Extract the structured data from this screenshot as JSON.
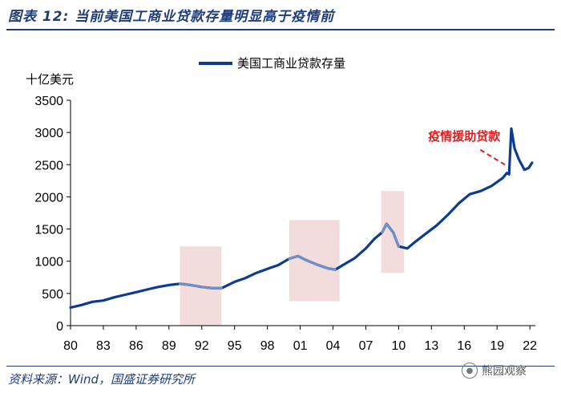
{
  "header": {
    "title": "图表 12:  当前美国工商业贷款存量明显高于疫情前"
  },
  "footer": {
    "source": "资料来源：Wind，国盛证券研究所",
    "watermark": "熊园观察"
  },
  "chart_data": {
    "type": "line",
    "title": "",
    "ylabel": "十亿美元",
    "xlabel": "",
    "ylim": [
      0,
      3500
    ],
    "xlim": [
      1980,
      2022.5
    ],
    "yticks": [
      0,
      500,
      1000,
      1500,
      2000,
      2500,
      3000,
      3500
    ],
    "xticks": [
      1980,
      1983,
      1986,
      1989,
      1992,
      1995,
      1998,
      2001,
      2004,
      2007,
      2010,
      2013,
      2016,
      2019,
      2022
    ],
    "xtick_labels": [
      "80",
      "83",
      "86",
      "89",
      "92",
      "95",
      "98",
      "01",
      "04",
      "07",
      "10",
      "13",
      "16",
      "19",
      "22"
    ],
    "grid": false,
    "legend": {
      "placement": "top-center"
    },
    "colors": {
      "series": "#0d3b91",
      "shade": "#f2dcdc",
      "shade_line": "#6f8fc8",
      "annotation": "#e8191d"
    },
    "series": [
      {
        "name": "美国工商业贷款存量",
        "x": [
          1980.0,
          1981.0,
          1982.0,
          1983.0,
          1984.0,
          1985.0,
          1986.0,
          1987.0,
          1988.0,
          1989.0,
          1990.0,
          1990.5,
          1991.0,
          1992.0,
          1993.0,
          1993.8,
          1995.0,
          1996.0,
          1997.0,
          1998.0,
          1999.0,
          2000.0,
          2000.8,
          2001.5,
          2002.5,
          2003.5,
          2004.2,
          2005.0,
          2006.0,
          2007.0,
          2007.8,
          2008.5,
          2008.9,
          2009.5,
          2010.0,
          2010.8,
          2011.5,
          2012.5,
          2013.5,
          2014.5,
          2015.5,
          2016.5,
          2017.5,
          2018.5,
          2019.5,
          2019.9,
          2020.1,
          2020.3,
          2020.6,
          2021.0,
          2021.5,
          2021.9,
          2022.2
        ],
        "values": [
          280,
          320,
          370,
          390,
          440,
          480,
          520,
          560,
          600,
          630,
          650,
          640,
          630,
          600,
          580,
          580,
          680,
          740,
          820,
          880,
          940,
          1040,
          1080,
          1020,
          950,
          890,
          870,
          950,
          1050,
          1200,
          1350,
          1450,
          1580,
          1450,
          1230,
          1200,
          1300,
          1430,
          1560,
          1720,
          1900,
          2040,
          2090,
          2170,
          2290,
          2370,
          2350,
          3060,
          2750,
          2580,
          2420,
          2450,
          2530
        ]
      }
    ],
    "shaded_periods": [
      {
        "x": [
          1990.0,
          1993.8
        ],
        "y": [
          0,
          1230
        ]
      },
      {
        "x": [
          2000.0,
          2004.6
        ],
        "y": [
          380,
          1640
        ]
      },
      {
        "x": [
          2008.4,
          2010.5
        ],
        "y": [
          820,
          2090
        ]
      }
    ],
    "annotations": [
      {
        "text": "疫情援助贷款",
        "x": 2016.0,
        "y": 2880,
        "arrow_to": [
          2019.8,
          2490
        ]
      }
    ]
  }
}
